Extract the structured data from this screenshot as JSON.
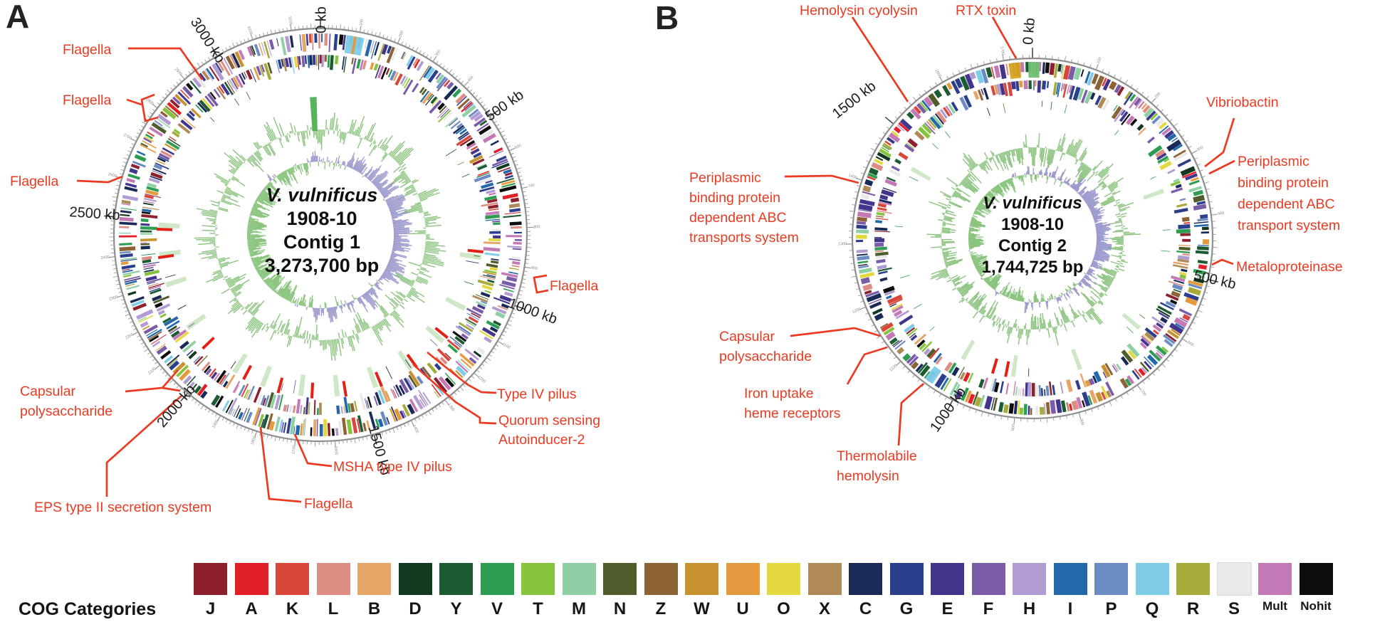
{
  "panels": [
    {
      "panel_label": "A",
      "center": {
        "species": "V. vulnificus",
        "strain": "1908-10",
        "contig": "Contig 1",
        "size": "3,273,700 bp"
      },
      "scale_labels": [
        {
          "text": "0 kb"
        },
        {
          "text": "500 kb"
        },
        {
          "text": "1000 kb"
        },
        {
          "text": "1500 kb"
        },
        {
          "text": "2000 kb"
        },
        {
          "text": "2500 kb"
        },
        {
          "text": "3000 kb"
        }
      ],
      "annotations": [
        {
          "id": "flagella-top",
          "text": "Flagella"
        },
        {
          "id": "flagella-upper",
          "text": "Flagella"
        },
        {
          "id": "flagella-left",
          "text": "Flagella"
        },
        {
          "id": "capsular-polysaccharide-a",
          "lines": [
            "Capsular",
            "polysaccharide"
          ]
        },
        {
          "id": "eps-secretion",
          "text": "EPS type II secretion system"
        },
        {
          "id": "flagella-bottom",
          "text": "Flagella"
        },
        {
          "id": "msha-pilus",
          "text": "MSHA type IV pilus"
        },
        {
          "id": "quorum-sensing",
          "lines": [
            "Quorum sensing",
            "Autoinducer-2"
          ]
        },
        {
          "id": "type-iv-pilus",
          "text": "Type IV pilus"
        },
        {
          "id": "flagella-right",
          "text": "Flagella"
        }
      ]
    },
    {
      "panel_label": "B",
      "center": {
        "species": "V. vulnificus",
        "strain": "1908-10",
        "contig": "Contig 2",
        "size": "1,744,725 bp"
      },
      "scale_labels": [
        {
          "text": "0 kb"
        },
        {
          "text": "500 kb"
        },
        {
          "text": "1000 kb"
        },
        {
          "text": "1500 kb"
        }
      ],
      "annotations": [
        {
          "id": "hemolysin-cyolysin",
          "text": "Hemolysin cyolysin"
        },
        {
          "id": "rtx-toxin",
          "text": "RTX toxin"
        },
        {
          "id": "vibriobactin",
          "text": "Vibriobactin"
        },
        {
          "id": "abc-transport-right",
          "lines": [
            "Periplasmic",
            "binding protein",
            "dependent ABC",
            "transport system"
          ]
        },
        {
          "id": "metaloproteinase",
          "text": "Metaloproteinase"
        },
        {
          "id": "abc-transports-left",
          "lines": [
            "Periplasmic",
            "binding protein",
            "dependent ABC",
            "transports system"
          ]
        },
        {
          "id": "capsular-polysaccharide-b",
          "lines": [
            "Capsular",
            "polysaccharide"
          ]
        },
        {
          "id": "iron-uptake",
          "lines": [
            "Iron uptake",
            "heme receptors"
          ]
        },
        {
          "id": "thermolabile-hemolysin",
          "lines": [
            "Thermolabile",
            "hemolysin"
          ]
        }
      ]
    }
  ],
  "legend": {
    "title": "COG Categories",
    "items": [
      {
        "code": "J",
        "color": "#8e1f2d"
      },
      {
        "code": "A",
        "color": "#e01f26"
      },
      {
        "code": "K",
        "color": "#d8473a"
      },
      {
        "code": "L",
        "color": "#dd8d82"
      },
      {
        "code": "B",
        "color": "#e5a667"
      },
      {
        "code": "D",
        "color": "#12391f"
      },
      {
        "code": "Y",
        "color": "#1d5b33"
      },
      {
        "code": "V",
        "color": "#2d9e51"
      },
      {
        "code": "T",
        "color": "#86c440"
      },
      {
        "code": "M",
        "color": "#8ecfa6"
      },
      {
        "code": "N",
        "color": "#515c2b"
      },
      {
        "code": "Z",
        "color": "#8d6336"
      },
      {
        "code": "W",
        "color": "#c8922f"
      },
      {
        "code": "U",
        "color": "#e69a3e"
      },
      {
        "code": "O",
        "color": "#e3d83d"
      },
      {
        "code": "X",
        "color": "#ad8a57"
      },
      {
        "code": "C",
        "color": "#1a2a56"
      },
      {
        "code": "G",
        "color": "#2c3f8c"
      },
      {
        "code": "E",
        "color": "#41358c"
      },
      {
        "code": "F",
        "color": "#7a5ba8"
      },
      {
        "code": "H",
        "color": "#b29bd3"
      },
      {
        "code": "I",
        "color": "#2268ab"
      },
      {
        "code": "P",
        "color": "#6b8cc3"
      },
      {
        "code": "Q",
        "color": "#7fcce8"
      },
      {
        "code": "R",
        "color": "#a8ab3c"
      },
      {
        "code": "S",
        "color": "#e9e9e9"
      },
      {
        "code": "Mult",
        "color": "#c379b5"
      },
      {
        "code": "Nohit",
        "color": "#0e0c0d"
      }
    ]
  },
  "chart_data": [
    {
      "type": "circular-genome-map",
      "panel": "A",
      "organism": "V. vulnificus",
      "strain": "1908-10",
      "contig": "Contig 1",
      "length_bp": 3273700,
      "length_label": "3,273,700 bp",
      "scale_unit": "kb",
      "scale_ticks_kb": [
        0,
        500,
        1000,
        1500,
        2000,
        2500,
        3000
      ],
      "rings_outside_in": [
        "kb scale ring with minor ticks",
        "CDS forward strand colored by COG category",
        "CDS reverse strand colored by COG category",
        "rRNA (red) and tRNA (light green) sites",
        "GC content (green)",
        "GC skew (purple positive / green negative)"
      ],
      "annotated_features": [
        "Flagella",
        "Flagella",
        "Flagella",
        "Capsular polysaccharide",
        "EPS type II secretion system",
        "Flagella",
        "MSHA type IV pilus",
        "Quorum sensing Autoinducer-2",
        "Type IV pilus",
        "Flagella"
      ]
    },
    {
      "type": "circular-genome-map",
      "panel": "B",
      "organism": "V. vulnificus",
      "strain": "1908-10",
      "contig": "Contig 2",
      "length_bp": 1744725,
      "length_label": "1,744,725 bp",
      "scale_unit": "kb",
      "scale_ticks_kb": [
        0,
        500,
        1000,
        1500
      ],
      "rings_outside_in": [
        "kb scale ring with minor ticks",
        "CDS forward strand colored by COG category",
        "CDS reverse strand colored by COG category",
        "rRNA (red) and tRNA (green) sites",
        "GC content (green)",
        "GC skew (purple positive / green negative)"
      ],
      "annotated_features": [
        "Hemolysin cyolysin",
        "RTX toxin",
        "Vibriobactin",
        "Periplasmic binding protein dependent ABC transport system",
        "Metaloproteinase",
        "Periplasmic binding protein dependent ABC transports system",
        "Capsular polysaccharide",
        "Iron uptake heme receptors",
        "Thermolabile hemolysin"
      ]
    }
  ]
}
